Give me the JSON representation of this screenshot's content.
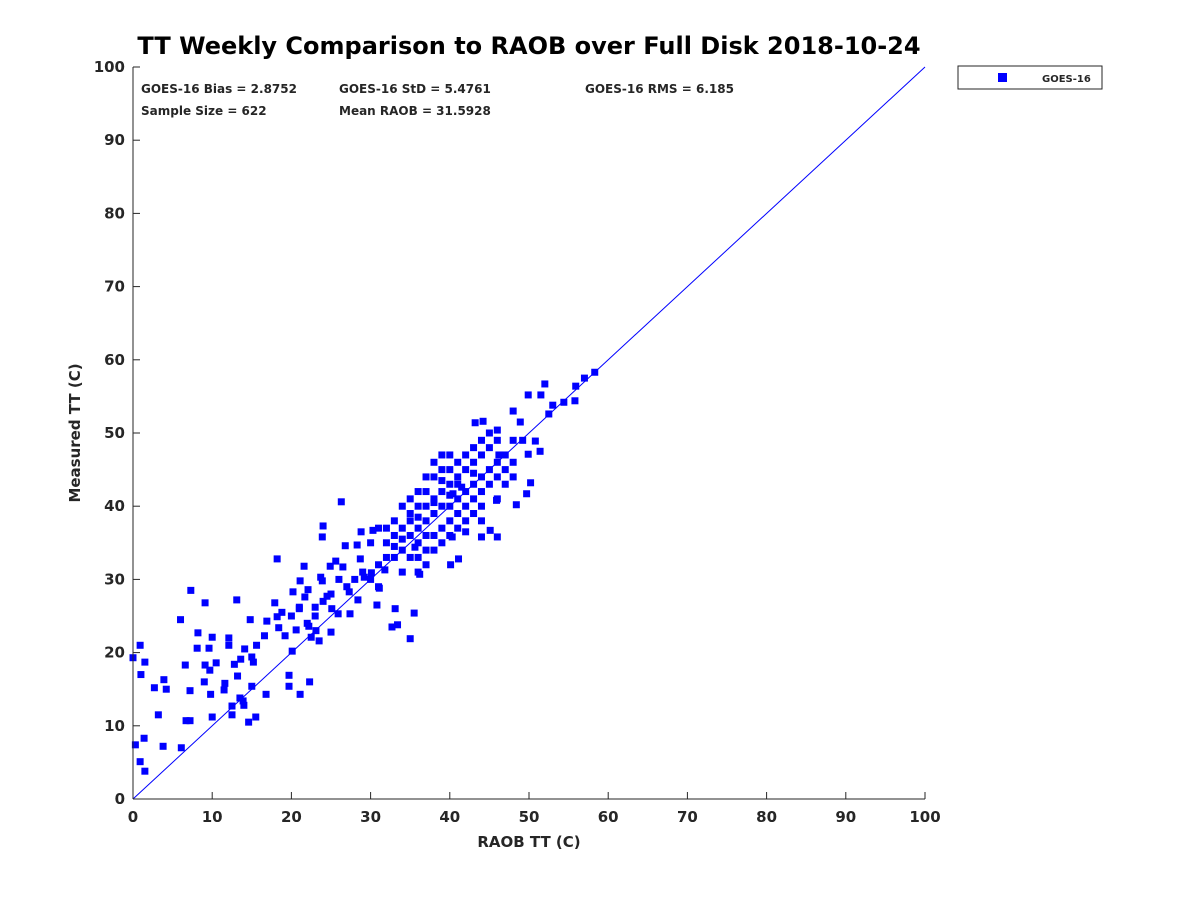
{
  "chart_data": {
    "type": "scatter",
    "title": "TT Weekly Comparison to RAOB over Full Disk 2018-10-24",
    "xlabel": "RAOB TT (C)",
    "ylabel": "Measured TT (C)",
    "xlim": [
      0,
      100
    ],
    "ylim": [
      0,
      100
    ],
    "xticks": [
      "0",
      "10",
      "20",
      "30",
      "40",
      "50",
      "60",
      "70",
      "80",
      "90",
      "100"
    ],
    "yticks": [
      "0",
      "10",
      "20",
      "30",
      "40",
      "50",
      "60",
      "70",
      "80",
      "90",
      "100"
    ],
    "grid": false,
    "legend": {
      "placement": "outside-top-right",
      "entries": [
        "GOES-16"
      ]
    },
    "annotations": [
      "GOES-16 Bias = 2.8752",
      "GOES-16 StD = 5.4761",
      "GOES-16 RMS = 6.185",
      "Sample Size = 622",
      "Mean RAOB = 31.5928"
    ],
    "reference_line": {
      "name": "1:1 line",
      "x": [
        0,
        100
      ],
      "y": [
        0,
        100
      ]
    },
    "series": [
      {
        "name": "GOES-16",
        "color": "#0000ff",
        "points": [
          [
            0,
            19.3
          ],
          [
            0.9,
            21
          ],
          [
            0.3,
            7.4
          ],
          [
            0.9,
            5.1
          ],
          [
            1.5,
            3.8
          ],
          [
            1.4,
            8.3
          ],
          [
            1,
            17
          ],
          [
            1.5,
            18.7
          ],
          [
            2.7,
            15.2
          ],
          [
            3.2,
            11.5
          ],
          [
            3.8,
            7.2
          ],
          [
            3.9,
            16.3
          ],
          [
            4.2,
            15
          ],
          [
            6,
            24.5
          ],
          [
            6.1,
            7
          ],
          [
            6.6,
            18.3
          ],
          [
            6.7,
            10.7
          ],
          [
            7.2,
            10.7
          ],
          [
            7.2,
            14.8
          ],
          [
            7.3,
            28.5
          ],
          [
            8.2,
            22.7
          ],
          [
            8.1,
            20.6
          ],
          [
            9.1,
            26.8
          ],
          [
            9,
            16
          ],
          [
            9.1,
            18.3
          ],
          [
            9.6,
            20.6
          ],
          [
            9.7,
            17.6
          ],
          [
            10,
            22.1
          ],
          [
            10,
            11.2
          ],
          [
            9.8,
            14.3
          ],
          [
            10.5,
            18.6
          ],
          [
            11.5,
            14.9
          ],
          [
            11.6,
            15.8
          ],
          [
            12.1,
            22
          ],
          [
            12.1,
            21
          ],
          [
            12.5,
            12.7
          ],
          [
            12.5,
            11.5
          ],
          [
            12.8,
            18.4
          ],
          [
            13.1,
            27.2
          ],
          [
            13.2,
            16.8
          ],
          [
            13.5,
            13.8
          ],
          [
            13.6,
            19.1
          ],
          [
            13.9,
            13.4
          ],
          [
            14,
            12.8
          ],
          [
            14.1,
            20.5
          ],
          [
            14.6,
            10.5
          ],
          [
            14.8,
            24.5
          ],
          [
            15,
            15.4
          ],
          [
            15,
            19.4
          ],
          [
            15.2,
            18.7
          ],
          [
            15.5,
            11.2
          ],
          [
            15.6,
            21
          ],
          [
            16.6,
            22.3
          ],
          [
            16.8,
            14.3
          ],
          [
            16.9,
            24.3
          ],
          [
            18.2,
            32.8
          ],
          [
            17.9,
            26.8
          ],
          [
            18.2,
            24.9
          ],
          [
            18.4,
            23.4
          ],
          [
            18.8,
            25.5
          ],
          [
            19.2,
            22.3
          ],
          [
            19.7,
            16.9
          ],
          [
            19.7,
            15.4
          ],
          [
            20.1,
            20.2
          ],
          [
            20.2,
            28.3
          ],
          [
            20.6,
            23.1
          ],
          [
            21,
            26.2
          ],
          [
            21.1,
            14.3
          ],
          [
            21.1,
            29.8
          ],
          [
            21.6,
            31.8
          ],
          [
            21.7,
            27.6
          ],
          [
            22.1,
            28.6
          ],
          [
            22.2,
            23.6
          ],
          [
            22.3,
            16
          ],
          [
            22.5,
            22.1
          ],
          [
            23,
            26.2
          ],
          [
            23.1,
            23
          ],
          [
            23.5,
            21.6
          ],
          [
            23.7,
            30.3
          ],
          [
            23.9,
            35.8
          ],
          [
            24,
            37.3
          ],
          [
            23.9,
            29.8
          ],
          [
            24.5,
            27.7
          ],
          [
            24.9,
            31.8
          ],
          [
            25.1,
            26
          ],
          [
            25,
            22.8
          ],
          [
            25.6,
            32.5
          ],
          [
            25.9,
            25.3
          ],
          [
            26.3,
            40.6
          ],
          [
            26.5,
            31.7
          ],
          [
            26.8,
            34.6
          ],
          [
            27.3,
            28.3
          ],
          [
            27.4,
            25.3
          ],
          [
            28.3,
            34.7
          ],
          [
            28.4,
            27.2
          ],
          [
            28.7,
            32.8
          ],
          [
            28.8,
            36.5
          ],
          [
            29.2,
            30.3
          ],
          [
            30.1,
            30.9
          ],
          [
            30.3,
            36.7
          ],
          [
            30.8,
            26.5
          ],
          [
            31.1,
            28.8
          ],
          [
            31.8,
            31.3
          ],
          [
            32.7,
            23.5
          ],
          [
            33.1,
            26
          ],
          [
            33.4,
            23.8
          ],
          [
            35,
            21.9
          ],
          [
            35.5,
            25.4
          ],
          [
            35.6,
            34.4
          ],
          [
            36.2,
            30.7
          ],
          [
            40.1,
            32
          ],
          [
            41.1,
            32.8
          ],
          [
            40.3,
            35.8
          ],
          [
            40.4,
            41.7
          ],
          [
            41.5,
            42.6
          ],
          [
            43.2,
            51.4
          ],
          [
            44.2,
            51.6
          ],
          [
            44,
            35.8
          ],
          [
            45.1,
            36.7
          ],
          [
            46,
            35.8
          ],
          [
            45.9,
            40.8
          ],
          [
            46,
            50.4
          ],
          [
            46.2,
            47
          ],
          [
            48,
            53
          ],
          [
            48.4,
            40.2
          ],
          [
            48.9,
            51.5
          ],
          [
            49.2,
            49
          ],
          [
            49.7,
            41.7
          ],
          [
            50.2,
            43.2
          ],
          [
            49.9,
            47.1
          ],
          [
            50.8,
            48.9
          ],
          [
            49.9,
            55.2
          ],
          [
            51.4,
            47.5
          ],
          [
            51.5,
            55.2
          ],
          [
            52,
            56.7
          ],
          [
            52.5,
            52.6
          ],
          [
            53,
            53.8
          ],
          [
            54.4,
            54.2
          ],
          [
            55.8,
            54.4
          ],
          [
            55.9,
            56.4
          ],
          [
            57,
            57.5
          ],
          [
            58.3,
            58.3
          ],
          [
            32,
            35
          ],
          [
            33,
            36
          ],
          [
            33,
            38
          ],
          [
            34,
            34
          ],
          [
            34,
            37
          ],
          [
            35,
            36
          ],
          [
            35,
            39
          ],
          [
            35,
            41
          ],
          [
            36,
            35
          ],
          [
            36,
            37
          ],
          [
            36,
            40
          ],
          [
            37,
            34
          ],
          [
            37,
            38
          ],
          [
            37,
            42
          ],
          [
            38,
            36
          ],
          [
            38,
            39
          ],
          [
            38,
            41
          ],
          [
            38,
            44
          ],
          [
            39,
            37
          ],
          [
            39,
            40
          ],
          [
            39,
            42
          ],
          [
            39,
            45
          ],
          [
            40,
            38
          ],
          [
            40,
            40
          ],
          [
            40,
            43
          ],
          [
            40,
            45
          ],
          [
            41,
            39
          ],
          [
            41,
            41
          ],
          [
            41,
            44
          ],
          [
            41,
            46
          ],
          [
            42,
            38
          ],
          [
            42,
            40
          ],
          [
            42,
            42
          ],
          [
            42,
            45
          ],
          [
            43,
            41
          ],
          [
            43,
            43
          ],
          [
            43,
            46
          ],
          [
            44,
            40
          ],
          [
            44,
            42
          ],
          [
            44,
            44
          ],
          [
            44,
            47
          ],
          [
            45,
            43
          ],
          [
            45,
            45
          ],
          [
            45,
            48
          ],
          [
            46,
            44
          ],
          [
            46,
            46
          ],
          [
            47,
            45
          ],
          [
            47,
            47
          ],
          [
            48,
            46
          ],
          [
            48,
            49
          ],
          [
            30,
            30
          ],
          [
            31,
            32
          ],
          [
            31,
            29
          ],
          [
            29,
            31
          ],
          [
            28,
            30
          ],
          [
            27,
            29
          ],
          [
            26,
            30
          ],
          [
            25,
            28
          ],
          [
            24,
            27
          ],
          [
            23,
            25
          ],
          [
            22,
            24
          ],
          [
            21,
            26
          ],
          [
            20,
            25
          ],
          [
            33,
            33
          ],
          [
            34,
            31
          ],
          [
            36,
            33
          ],
          [
            37,
            36
          ],
          [
            35,
            33
          ],
          [
            32,
            37
          ],
          [
            30,
            35
          ],
          [
            31,
            37
          ],
          [
            34,
            40
          ],
          [
            36,
            42
          ],
          [
            37,
            44
          ],
          [
            38,
            46
          ],
          [
            39,
            47
          ],
          [
            40,
            47
          ],
          [
            42,
            47
          ],
          [
            43,
            48
          ],
          [
            44,
            49
          ],
          [
            45,
            50
          ],
          [
            46,
            49
          ],
          [
            36,
            38.5
          ],
          [
            38,
            40.5
          ],
          [
            40,
            41.5
          ],
          [
            41,
            43
          ],
          [
            43,
            44.5
          ],
          [
            39,
            43.5
          ],
          [
            37,
            40
          ],
          [
            35,
            38
          ],
          [
            33,
            34.5
          ],
          [
            32,
            33
          ],
          [
            34,
            35.5
          ],
          [
            40,
            36
          ],
          [
            42,
            36.5
          ],
          [
            44,
            38
          ],
          [
            46,
            41
          ],
          [
            47,
            43
          ],
          [
            48,
            44
          ],
          [
            38,
            34
          ],
          [
            36,
            31
          ],
          [
            37,
            32
          ],
          [
            39,
            35
          ],
          [
            41,
            37
          ],
          [
            43,
            39
          ]
        ]
      }
    ]
  }
}
